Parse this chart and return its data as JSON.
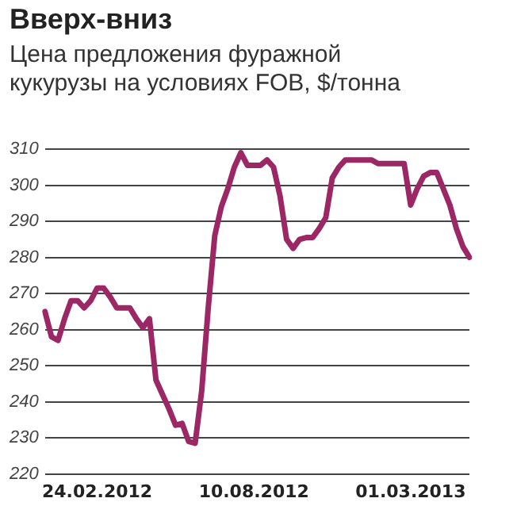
{
  "chart_data": {
    "type": "line",
    "title": "Вверх-вниз",
    "subtitle": "Цена предложения фуражной кукурузы на условиях FOB, $/тонна",
    "categories": [
      null,
      null,
      null,
      null,
      null,
      null,
      null,
      null,
      "24.02.2012",
      null,
      null,
      null,
      null,
      null,
      null,
      null,
      null,
      null,
      null,
      null,
      null,
      null,
      null,
      null,
      null,
      null,
      null,
      null,
      null,
      null,
      null,
      null,
      "10.08.2012",
      null,
      null,
      null,
      null,
      null,
      null,
      null,
      null,
      null,
      null,
      null,
      null,
      null,
      null,
      null,
      null,
      null,
      null,
      null,
      null,
      null,
      null,
      null,
      "01.03.2013",
      null,
      null,
      null,
      null,
      null,
      null,
      null,
      null,
      null
    ],
    "series": [
      {
        "color": "#9c2765",
        "values": [
          265,
          258,
          257,
          263,
          268,
          268,
          266,
          268,
          271.5,
          271.5,
          269,
          266,
          266,
          266,
          263,
          260.5,
          263,
          246,
          242,
          238,
          233.5,
          234,
          229,
          228.5,
          243,
          266,
          286,
          294,
          299,
          305,
          309,
          305.5,
          305.5,
          305.5,
          307,
          305,
          297,
          285,
          282.5,
          285,
          285.5,
          285.5,
          288,
          291,
          302,
          305,
          307,
          307,
          307,
          307,
          307,
          306,
          306,
          306,
          306,
          306,
          294.5,
          299,
          302.5,
          303.5,
          303.5,
          299,
          294.5,
          288,
          283,
          280
        ]
      }
    ],
    "ylim": [
      220,
      310
    ],
    "yticks": [
      220,
      230,
      240,
      250,
      260,
      270,
      280,
      290,
      300,
      310
    ],
    "grid": "y",
    "legend": false,
    "marker": "none",
    "line_style": "solid"
  }
}
